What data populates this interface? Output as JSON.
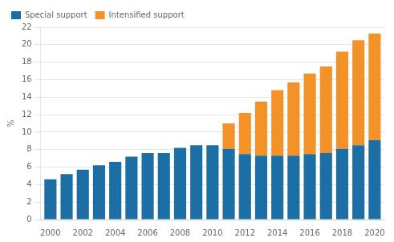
{
  "chart_data": {
    "type": "bar",
    "stacked": true,
    "x": [
      2000,
      2001,
      2002,
      2003,
      2004,
      2005,
      2006,
      2007,
      2008,
      2009,
      2010,
      2011,
      2012,
      2013,
      2014,
      2015,
      2016,
      2017,
      2018,
      2019,
      2020
    ],
    "series": [
      {
        "name": "Special support",
        "color": "#1c6fa5",
        "values": [
          4.6,
          5.2,
          5.7,
          6.2,
          6.6,
          7.2,
          7.6,
          7.6,
          8.2,
          8.5,
          8.5,
          8.1,
          7.5,
          7.3,
          7.3,
          7.3,
          7.5,
          7.6,
          8.1,
          8.5,
          9.1
        ]
      },
      {
        "name": "Intensified support",
        "color": "#f4922a",
        "values": [
          0.0,
          0.0,
          0.0,
          0.0,
          0.0,
          0.0,
          0.0,
          0.0,
          0.0,
          0.0,
          0.0,
          2.9,
          4.7,
          6.2,
          7.5,
          8.4,
          9.2,
          9.9,
          11.1,
          12.0,
          12.2
        ]
      }
    ],
    "xlim": [
      1999.4,
      2020.6
    ],
    "xticks": [
      2000,
      2002,
      2004,
      2006,
      2008,
      2010,
      2012,
      2014,
      2016,
      2018,
      2020
    ],
    "ylim": [
      0,
      22
    ],
    "yticks": [
      0,
      2,
      4,
      6,
      8,
      10,
      12,
      14,
      16,
      18,
      20,
      22
    ],
    "ylabel": "%",
    "grid": true,
    "legend": "upper left"
  }
}
